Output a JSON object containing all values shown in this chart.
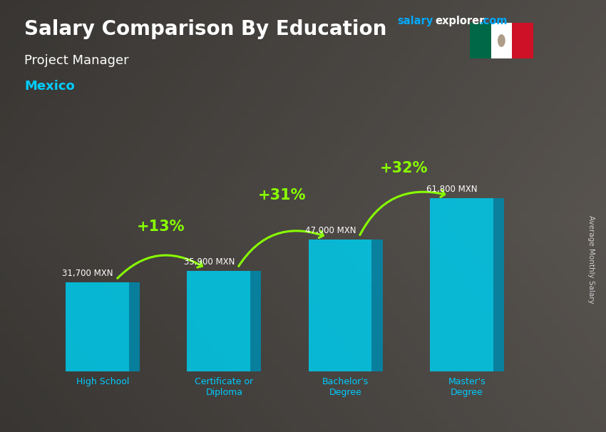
{
  "title_main": "Salary Comparison By Education",
  "subtitle1": "Project Manager",
  "subtitle2": "Mexico",
  "ylabel": "Average Monthly Salary",
  "categories": [
    "High School",
    "Certificate or\nDiploma",
    "Bachelor's\nDegree",
    "Master's\nDegree"
  ],
  "values": [
    31700,
    35900,
    47000,
    61800
  ],
  "value_labels": [
    "31,700 MXN",
    "35,900 MXN",
    "47,000 MXN",
    "61,800 MXN"
  ],
  "pct_labels": [
    "+13%",
    "+31%",
    "+32%"
  ],
  "bar_color_front": "#00c8e8",
  "bar_color_side": "#0088aa",
  "bar_color_top": "#44ddff",
  "bg_color": "#787878",
  "title_color": "#ffffff",
  "subtitle1_color": "#ffffff",
  "subtitle2_color": "#00ccff",
  "value_label_color": "#ffffff",
  "pct_color": "#88ff00",
  "arrow_color": "#88ff00",
  "axis_label_color": "#cccccc",
  "tick_label_color": "#00ccff",
  "brand_salary_color": "#00aaff",
  "brand_explorer_color": "#ffffff",
  "brand_com_color": "#ffffff",
  "ylim": [
    0,
    80000
  ],
  "bar_width": 0.52,
  "bar_depth": 0.09
}
